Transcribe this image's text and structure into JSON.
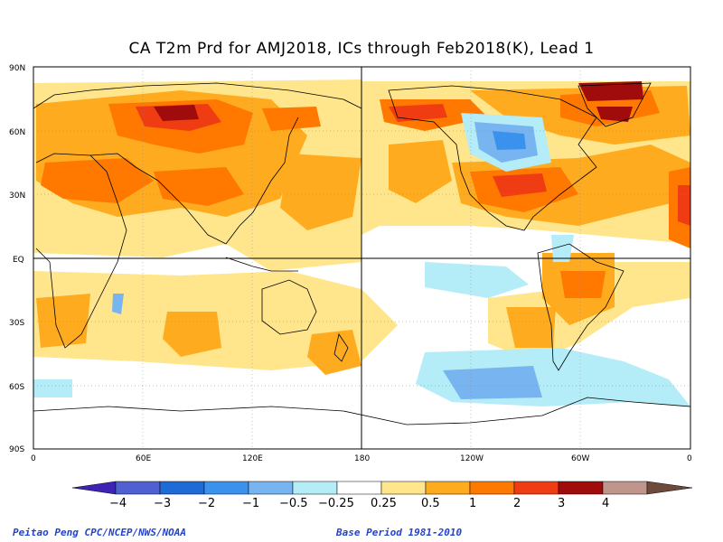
{
  "title": "CA T2m Prd for AMJ2018, ICs through Feb2018(K), Lead 1",
  "axes": {
    "lat_labels": [
      "90N",
      "60N",
      "30N",
      "EQ",
      "30S",
      "60S",
      "90S"
    ],
    "lon_labels": [
      "0",
      "60E",
      "120E",
      "180",
      "120W",
      "60W",
      "0"
    ]
  },
  "colorbar": {
    "labels": [
      "−4",
      "−3",
      "−2",
      "−1",
      "−0.5",
      "−0.25",
      "0.25",
      "0.5",
      "1",
      "2",
      "3",
      "4"
    ],
    "colors": [
      "#3f23b4",
      "#5060d2",
      "#1e6ad6",
      "#3b92ec",
      "#78b4f0",
      "#b4ecf8",
      "#ffffff",
      "#ffe68c",
      "#ffab1f",
      "#ff7800",
      "#f03c12",
      "#a00c0c",
      "#c0968c",
      "#6e4a3c"
    ]
  },
  "footer": {
    "left": "Peitao Peng CPC/NCEP/NWS/NOAA",
    "right": "Base Period 1981-2010"
  }
}
